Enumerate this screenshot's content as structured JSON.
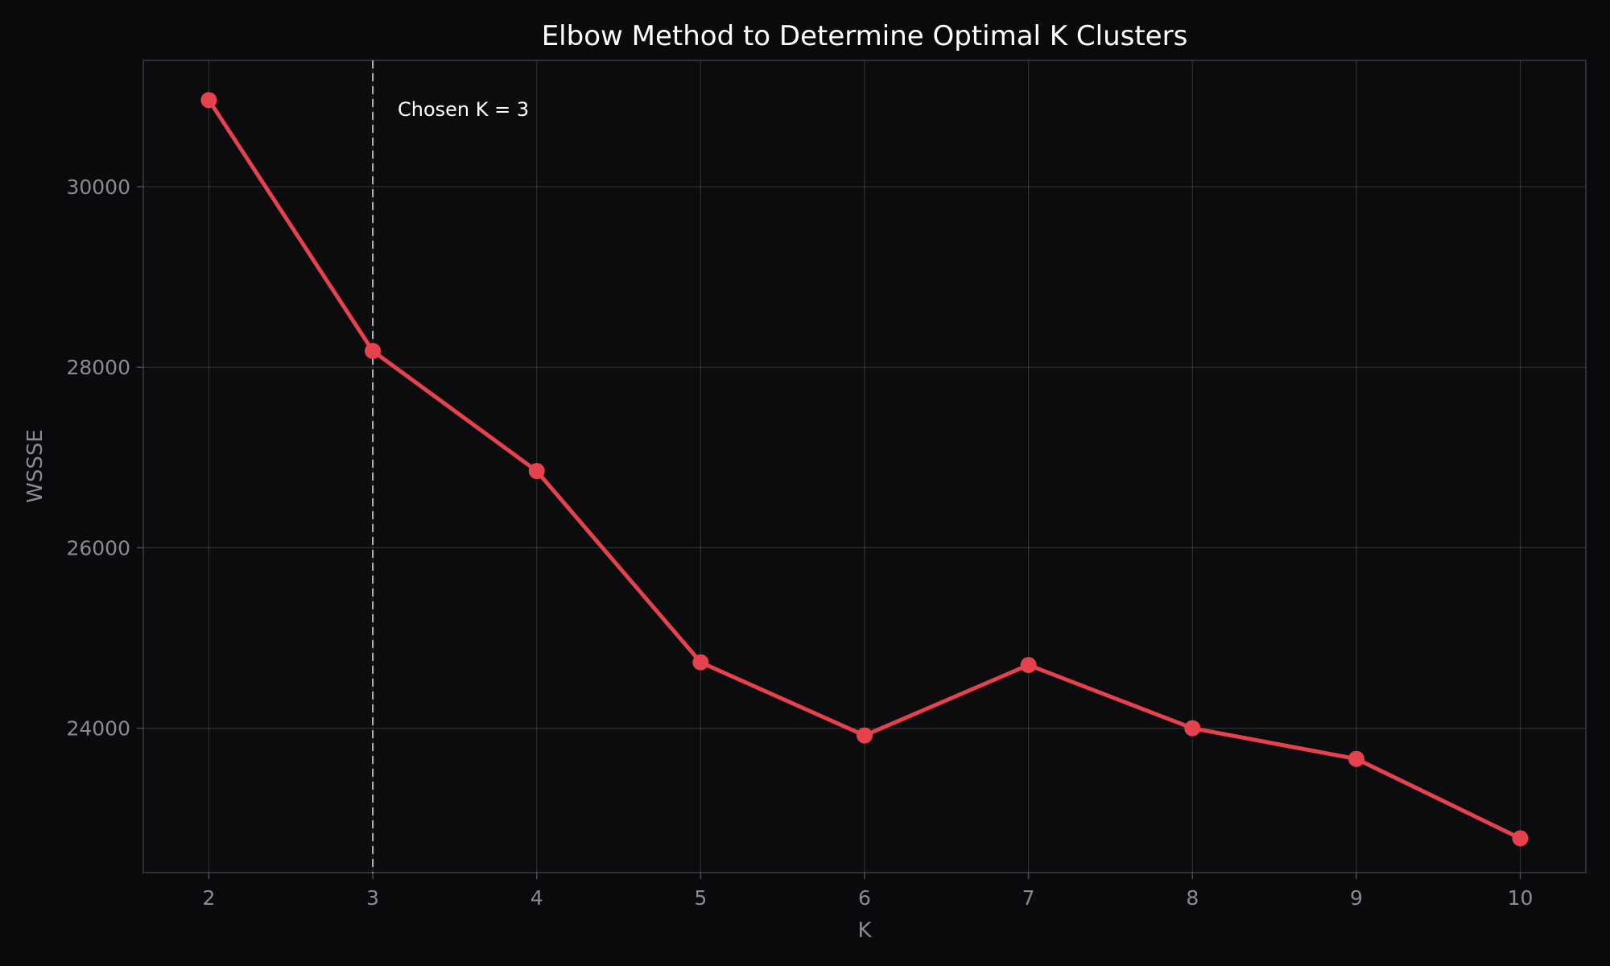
{
  "chart_data": {
    "type": "line",
    "title": "Elbow Method to Determine Optimal K Clusters",
    "xlabel": "K",
    "ylabel": "WSSSE",
    "x": [
      2,
      3,
      4,
      5,
      6,
      7,
      8,
      9,
      10
    ],
    "series": [
      {
        "values": [
          30960,
          28180,
          26850,
          24730,
          23920,
          24700,
          24000,
          23660,
          22780
        ]
      }
    ],
    "xlim": [
      1.6,
      10.4
    ],
    "ylim": [
      22400,
      31400
    ],
    "x_ticks": [
      2,
      3,
      4,
      5,
      6,
      7,
      8,
      9,
      10
    ],
    "y_ticks": [
      24000,
      26000,
      28000,
      30000
    ],
    "grid": true,
    "annotation": {
      "text": "Chosen K = 3",
      "x": 3,
      "style": "dashed vertical line"
    },
    "colors": {
      "background": "#0a0a0c",
      "line": "#e5424d",
      "reference_line": "#bbbbbb"
    }
  }
}
